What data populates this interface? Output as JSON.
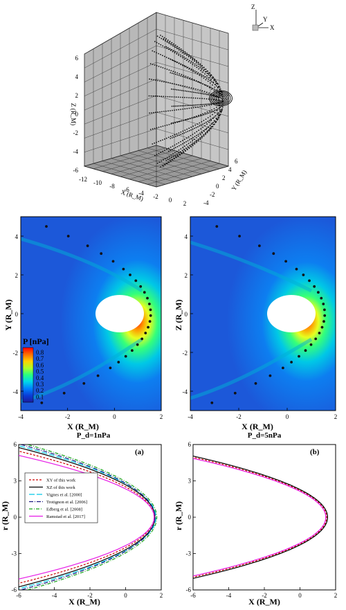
{
  "cube": {
    "axis_x_label": "X (R_M)",
    "axis_y_label": "Y (R_M)",
    "axis_z_label": "Z (R_M)",
    "x_ticks": [
      "-12",
      "-10",
      "-8",
      "-6",
      "-4",
      "-2",
      "0",
      "2"
    ],
    "y_ticks": [
      "-4",
      "-2",
      "0",
      "2",
      "4",
      "6"
    ],
    "z_ticks": [
      "-6",
      "-4",
      "-2",
      "0",
      "2",
      "4",
      "6"
    ],
    "triad": {
      "x": "X",
      "y": "Y",
      "z": "Z"
    }
  },
  "maps": [
    {
      "y_label": "Y (R_M)",
      "x_label": "X (R_M)",
      "caption": "P_d=1nPa",
      "x_ticks": [
        "-4",
        "-2",
        "0",
        "2"
      ],
      "y_ticks": [
        "4",
        "2",
        "0",
        "-2",
        "-4"
      ]
    },
    {
      "y_label": "Z (R_M)",
      "x_label": "X (R_M)",
      "caption": "P_d=5nPa",
      "x_ticks": [
        "-4",
        "-2",
        "0",
        "2"
      ],
      "y_ticks": [
        "4",
        "2",
        "0",
        "-2",
        "-4"
      ]
    }
  ],
  "colorbar": {
    "title": "P [nPa]",
    "ticks": [
      "0.8",
      "0.7",
      "0.6",
      "0.5",
      "0.4",
      "0.3",
      "0.2",
      "0.1"
    ],
    "colors": [
      "#ff0000",
      "#ff6a00",
      "#ffd200",
      "#a8ff2a",
      "#27ff82",
      "#00d9e8",
      "#0082ff",
      "#0a3bd6",
      "#1c1c9c"
    ]
  },
  "chart_data": [
    {
      "type": "line",
      "panel": "(a)",
      "xlabel": "X (R_M)",
      "ylabel": "r (R_M)",
      "xlim": [
        -6,
        2
      ],
      "ylim": [
        -6,
        6
      ],
      "x_ticks": [
        "-6",
        "-4",
        "-2",
        "0",
        "2"
      ],
      "y_ticks": [
        "-6",
        "-3",
        "0",
        "3",
        "6"
      ],
      "series": [
        {
          "name": "XY of this work",
          "color": "#cc0000",
          "dash": "3,2",
          "x0": 1.6,
          "r_at_xmin": 5.45
        },
        {
          "name": "XZ of this work",
          "color": "#000000",
          "dash": "",
          "x0": 1.65,
          "r_at_xmin": 5.75
        },
        {
          "name": "Vignes et al. [2000]",
          "color": "#00c8e6",
          "dash": "8,3",
          "x0": 1.7,
          "r_at_xmin": 5.9
        },
        {
          "name": "Trotignon et al. [2006]",
          "color": "#1a1a80",
          "dash": "6,2,1,2",
          "x0": 1.65,
          "r_at_xmin": 6.05
        },
        {
          "name": "Edberg et al. [2008]",
          "color": "#19a319",
          "dash": "5,2,1,2",
          "x0": 1.75,
          "r_at_xmin": 6.2
        },
        {
          "name": "Ramstad et al. [2017]",
          "color": "#e619e6",
          "dash": "",
          "x0": 1.6,
          "r_at_xmin": 5.1
        }
      ]
    },
    {
      "type": "line",
      "panel": "(b)",
      "xlabel": "X (R_M)",
      "ylabel": "r (R_M)",
      "xlim": [
        -6,
        2
      ],
      "ylim": [
        -6,
        6
      ],
      "x_ticks": [
        "-6",
        "-4",
        "-2",
        "0",
        "2"
      ],
      "y_ticks": [
        "-6",
        "-3",
        "0",
        "3",
        "6"
      ],
      "series": [
        {
          "color": "#cc0000",
          "dash": "3,2",
          "x0": 1.5,
          "r_at_xmin": 4.95
        },
        {
          "color": "#000000",
          "dash": "",
          "x0": 1.55,
          "r_at_xmin": 5.05
        },
        {
          "color": "#e619e6",
          "dash": "",
          "x0": 1.45,
          "r_at_xmin": 4.85
        }
      ]
    }
  ]
}
